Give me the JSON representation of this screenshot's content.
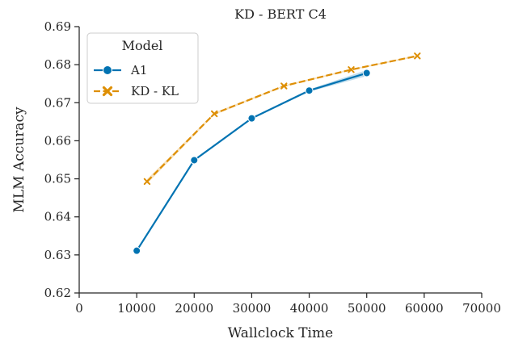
{
  "chart_data": {
    "type": "line",
    "title": "KD - BERT C4",
    "xlabel": "Wallclock Time",
    "ylabel": "MLM Accuracy",
    "xlim": [
      0,
      70000
    ],
    "ylim": [
      0.62,
      0.69
    ],
    "x_ticks": [
      0,
      10000,
      20000,
      30000,
      40000,
      50000,
      60000,
      70000
    ],
    "x_tick_labels": [
      "0",
      "10000",
      "20000",
      "30000",
      "40000",
      "50000",
      "60000",
      "70000"
    ],
    "y_ticks": [
      0.62,
      0.63,
      0.64,
      0.65,
      0.66,
      0.67,
      0.68,
      0.69
    ],
    "y_tick_labels": [
      "0.62",
      "0.63",
      "0.64",
      "0.65",
      "0.66",
      "0.67",
      "0.68",
      "0.69"
    ],
    "grid": false,
    "legend": {
      "title": "Model",
      "placement": "top-left"
    },
    "series": [
      {
        "name": "A1",
        "color": "#0173b2",
        "linestyle": "solid",
        "marker": "circle",
        "x": [
          10000,
          20000,
          30000,
          40000,
          50000
        ],
        "y": [
          0.6311,
          0.6549,
          0.6659,
          0.6732,
          0.6778
        ],
        "band": [
          0.0001,
          0.0002,
          0.0002,
          0.0003,
          0.0008
        ]
      },
      {
        "name": "KD - KL",
        "color": "#de8f05",
        "linestyle": "dashed",
        "marker": "x",
        "x": [
          11800,
          23500,
          35600,
          47300,
          58800
        ],
        "y": [
          0.6493,
          0.6671,
          0.6744,
          0.6787,
          0.6823
        ],
        "band": [
          0.0006,
          0.0003,
          0.0002,
          0.0002,
          0.0002
        ]
      }
    ]
  }
}
